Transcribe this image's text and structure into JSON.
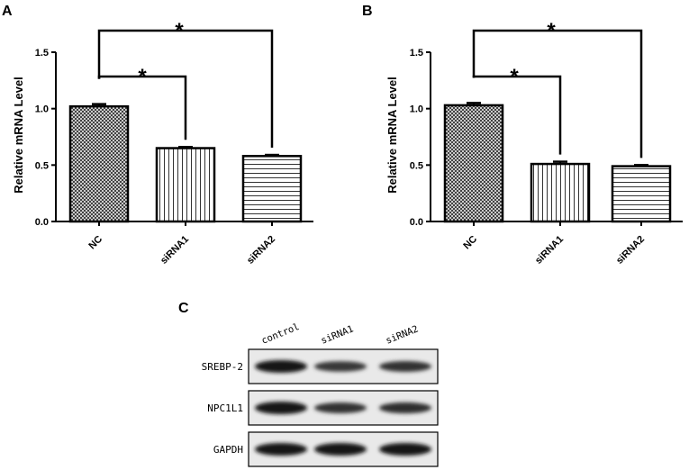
{
  "chart_data": [
    {
      "panel": "A",
      "type": "bar",
      "ylabel": "Relative mRNA Level",
      "ylim": [
        0,
        1.5
      ],
      "yticks": [
        "0.0",
        "0.5",
        "1.0",
        "1.5"
      ],
      "categories": [
        "NC",
        "siRNA1",
        "siRNA2"
      ],
      "values": [
        1.02,
        0.65,
        0.58
      ],
      "errors": [
        0.02,
        0.01,
        0.01
      ],
      "patterns": [
        "crosshatch",
        "vertical-lines",
        "horizontal-lines"
      ],
      "significance": [
        {
          "from": "NC",
          "to": "siRNA1",
          "label": "*"
        },
        {
          "from": "NC",
          "to": "siRNA2",
          "label": "*"
        }
      ],
      "grid": false
    },
    {
      "panel": "B",
      "type": "bar",
      "ylabel": "Relative mRNA Level",
      "ylim": [
        0,
        1.5
      ],
      "yticks": [
        "0.0",
        "0.5",
        "1.0",
        "1.5"
      ],
      "categories": [
        "NC",
        "siRNA1",
        "siRNA2"
      ],
      "values": [
        1.03,
        0.51,
        0.49
      ],
      "errors": [
        0.02,
        0.02,
        0.01
      ],
      "patterns": [
        "crosshatch",
        "vertical-lines",
        "horizontal-lines"
      ],
      "significance": [
        {
          "from": "NC",
          "to": "siRNA1",
          "label": "*"
        },
        {
          "from": "NC",
          "to": "siRNA2",
          "label": "*"
        }
      ],
      "grid": false
    }
  ],
  "blot": {
    "panel": "C",
    "lanes": [
      "control",
      "siRNA1",
      "siRNA2"
    ],
    "rows": [
      {
        "label": "SREBP-2",
        "intensities": [
          1.0,
          0.65,
          0.7
        ]
      },
      {
        "label": "NPC1L1",
        "intensities": [
          1.0,
          0.7,
          0.75
        ]
      },
      {
        "label": "GAPDH",
        "intensities": [
          1.0,
          1.0,
          1.0
        ]
      }
    ]
  }
}
